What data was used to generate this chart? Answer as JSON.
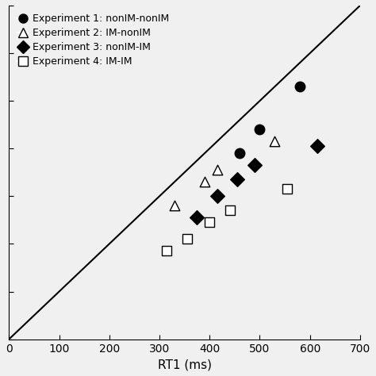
{
  "title": "",
  "xlabel": "RT1 (ms)",
  "ylabel": "",
  "xlim": [
    0,
    700
  ],
  "ylim": [
    0,
    700
  ],
  "xticks": [
    0,
    100,
    200,
    300,
    400,
    500,
    600,
    700
  ],
  "yticks": [
    0,
    100,
    200,
    300,
    400,
    500,
    600,
    700
  ],
  "experiments": [
    {
      "label": "Experiment 1: nonIM-nonIM",
      "marker": "o",
      "filled": true,
      "markersize": 9,
      "x": [
        460,
        500,
        580
      ],
      "y": [
        390,
        440,
        530
      ]
    },
    {
      "label": "Experiment 2: IM-nonIM",
      "marker": "^",
      "filled": false,
      "markersize": 9,
      "x": [
        330,
        390,
        415,
        530
      ],
      "y": [
        280,
        330,
        355,
        415
      ]
    },
    {
      "label": "Experiment 3: nonIM-IM",
      "marker": "D",
      "filled": true,
      "markersize": 9,
      "x": [
        375,
        415,
        455,
        490,
        615
      ],
      "y": [
        255,
        300,
        335,
        365,
        405
      ]
    },
    {
      "label": "Experiment 4: IM-IM",
      "marker": "s",
      "filled": false,
      "markersize": 9,
      "x": [
        315,
        355,
        400,
        440,
        555
      ],
      "y": [
        185,
        210,
        245,
        270,
        315
      ]
    }
  ],
  "background_color": "#f0f0f0",
  "legend_fontsize": 9,
  "axis_fontsize": 11,
  "tick_fontsize": 10
}
